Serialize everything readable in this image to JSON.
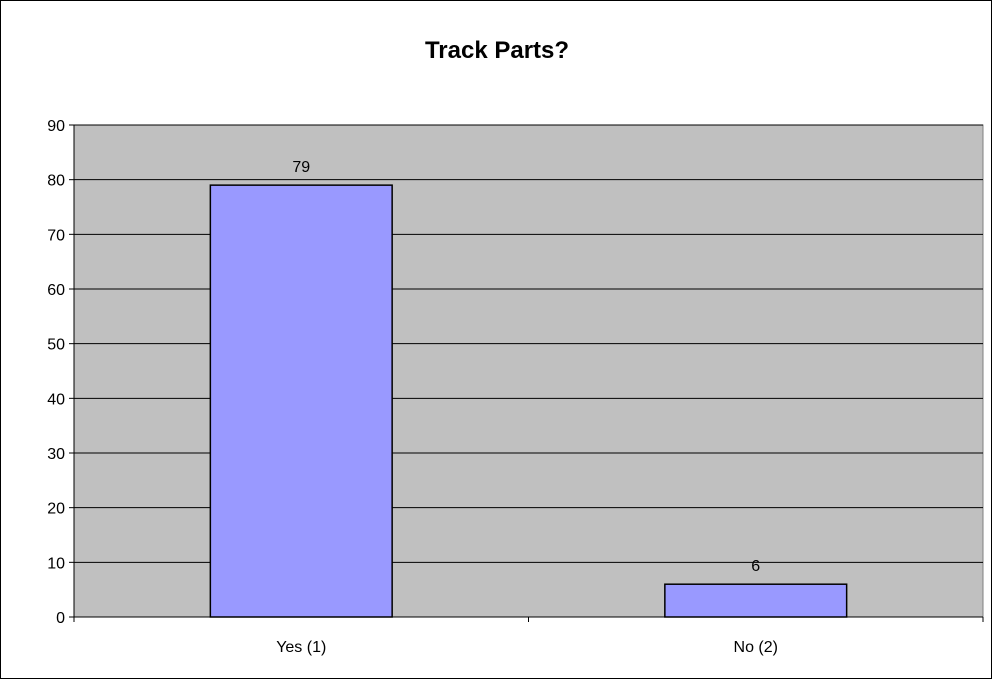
{
  "chart_data": {
    "type": "bar",
    "title": "Track Parts?",
    "categories": [
      "Yes (1)",
      "No (2)"
    ],
    "values": [
      79,
      6
    ],
    "data_labels": [
      "79",
      "6"
    ],
    "ylim": [
      0,
      90
    ],
    "yticks": [
      0,
      10,
      20,
      30,
      40,
      50,
      60,
      70,
      80,
      90
    ],
    "ytick_labels": [
      "0",
      "10",
      "20",
      "30",
      "40",
      "50",
      "60",
      "70",
      "80",
      "90"
    ],
    "xlabel": "",
    "ylabel": "",
    "grid": true,
    "legend": "none",
    "colors": {
      "plot_background": "#c0c0c0",
      "bar_fill": "#9999ff",
      "bar_stroke": "#000000",
      "gridline": "#000000"
    }
  }
}
